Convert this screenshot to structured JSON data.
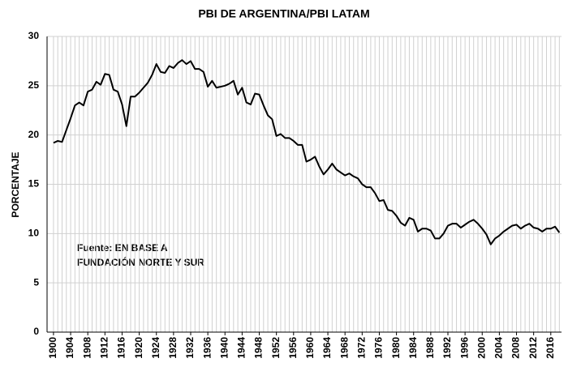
{
  "chart_data": {
    "type": "line",
    "title": "PBI DE ARGENTINA/PBI LATAM",
    "y_label": "PORCENTAJE",
    "annotations": [
      "Fuente: EN BASE A",
      "FUNDACIÓN NORTE Y SUR"
    ],
    "x": [
      1900,
      1901,
      1902,
      1903,
      1904,
      1905,
      1906,
      1907,
      1908,
      1909,
      1910,
      1911,
      1912,
      1913,
      1914,
      1915,
      1916,
      1917,
      1918,
      1919,
      1920,
      1921,
      1922,
      1923,
      1924,
      1925,
      1926,
      1927,
      1928,
      1929,
      1930,
      1931,
      1932,
      1933,
      1934,
      1935,
      1936,
      1937,
      1938,
      1939,
      1940,
      1941,
      1942,
      1943,
      1944,
      1945,
      1946,
      1947,
      1948,
      1949,
      1950,
      1951,
      1952,
      1953,
      1954,
      1955,
      1956,
      1957,
      1958,
      1959,
      1960,
      1961,
      1962,
      1963,
      1964,
      1965,
      1966,
      1967,
      1968,
      1969,
      1970,
      1971,
      1972,
      1973,
      1974,
      1975,
      1976,
      1977,
      1978,
      1979,
      1980,
      1981,
      1982,
      1983,
      1984,
      1985,
      1986,
      1987,
      1988,
      1989,
      1990,
      1991,
      1992,
      1993,
      1994,
      1995,
      1996,
      1997,
      1998,
      1999,
      2000,
      2001,
      2002,
      2003,
      2004,
      2005,
      2006,
      2007,
      2008,
      2009,
      2010,
      2011,
      2012,
      2013,
      2014,
      2015,
      2016,
      2017,
      2018
    ],
    "values": [
      19.2,
      19.4,
      19.3,
      20.5,
      21.7,
      23.0,
      23.3,
      23.0,
      24.4,
      24.6,
      25.4,
      25.1,
      26.2,
      26.1,
      24.6,
      24.4,
      23.1,
      20.9,
      23.9,
      23.9,
      24.3,
      24.8,
      25.3,
      26.1,
      27.2,
      26.4,
      26.3,
      27.0,
      26.8,
      27.3,
      27.6,
      27.2,
      27.5,
      26.7,
      26.7,
      26.4,
      24.9,
      25.5,
      24.8,
      24.9,
      25.0,
      25.2,
      25.5,
      24.1,
      24.8,
      23.3,
      23.1,
      24.2,
      24.1,
      23.0,
      22.0,
      21.6,
      19.9,
      20.1,
      19.7,
      19.7,
      19.4,
      19.0,
      19.0,
      17.3,
      17.5,
      17.8,
      16.8,
      16.0,
      16.5,
      17.1,
      16.5,
      16.2,
      15.9,
      16.1,
      15.8,
      15.6,
      15.0,
      14.7,
      14.7,
      14.1,
      13.3,
      13.4,
      12.4,
      12.3,
      11.8,
      11.1,
      10.8,
      11.6,
      11.4,
      10.2,
      10.5,
      10.5,
      10.3,
      9.5,
      9.5,
      10.0,
      10.8,
      11.0,
      11.0,
      10.6,
      10.9,
      11.2,
      11.4,
      11.0,
      10.5,
      9.9,
      8.9,
      9.5,
      9.8,
      10.2,
      10.5,
      10.8,
      10.9,
      10.5,
      10.8,
      11.0,
      10.6,
      10.5,
      10.2,
      10.5,
      10.5,
      10.7,
      10.1
    ],
    "color": "#000000",
    "xlim": [
      1898.5,
      2018.5
    ],
    "xticks": [
      1900,
      1904,
      1908,
      1912,
      1916,
      1920,
      1924,
      1928,
      1932,
      1936,
      1940,
      1944,
      1948,
      1952,
      1956,
      1960,
      1964,
      1968,
      1972,
      1976,
      1980,
      1984,
      1988,
      1992,
      1996,
      2000,
      2004,
      2008,
      2012,
      2016
    ],
    "ylim": [
      0,
      30
    ],
    "yticks": [
      0,
      5,
      10,
      15,
      20,
      25,
      30
    ],
    "grid": true
  }
}
